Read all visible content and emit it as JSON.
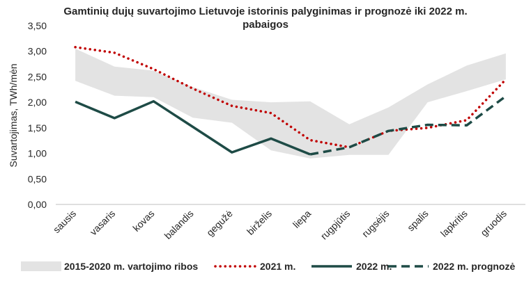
{
  "chart_data": {
    "type": "line",
    "title_line1": "Gamtinių dujų suvartojimo Lietuvoje istorinis palyginimas ir prognozė iki 2022 m.",
    "title_line2": "pabaigos",
    "ylabel": "Suvartojimas, TWh/mėn",
    "xlabel": "",
    "ylim": [
      0,
      3.5
    ],
    "y_ticks": [
      "0,00",
      "0,50",
      "1,00",
      "1,50",
      "2,00",
      "2,50",
      "3,00",
      "3,50"
    ],
    "categories": [
      "sausis",
      "vasaris",
      "kovas",
      "balandis",
      "gegužė",
      "birželis",
      "liepa",
      "rugpjūtis",
      "rugsėjis",
      "spalis",
      "lapkritis",
      "gruodis"
    ],
    "band": {
      "name": "2015-2020 m. vartojimo ribos",
      "color": "#e3e3e3",
      "upper": [
        3.05,
        2.7,
        2.62,
        2.3,
        2.05,
        2.0,
        2.02,
        1.57,
        1.9,
        2.35,
        2.72,
        2.96
      ],
      "lower": [
        2.42,
        2.13,
        2.1,
        1.7,
        1.6,
        1.06,
        0.9,
        0.97,
        0.97,
        2.0,
        2.22,
        2.45
      ]
    },
    "series": [
      {
        "name": "2021 m.",
        "style": "dotted",
        "color": "#c00000",
        "values": [
          3.08,
          2.97,
          2.65,
          2.27,
          1.93,
          1.79,
          1.26,
          1.12,
          1.44,
          1.5,
          1.65,
          2.45
        ]
      },
      {
        "name": "2022 m.",
        "style": "solid",
        "color": "#1e4b46",
        "values": [
          2.01,
          1.69,
          2.02,
          1.52,
          1.02,
          1.29,
          0.98,
          null,
          null,
          null,
          null,
          null
        ]
      },
      {
        "name": "2022 m. prognozė",
        "style": "dashed",
        "color": "#1e4b46",
        "values": [
          null,
          null,
          null,
          null,
          null,
          null,
          0.98,
          1.12,
          1.44,
          1.56,
          1.55,
          2.12
        ]
      }
    ],
    "grid": false,
    "legend_position": "bottom"
  }
}
